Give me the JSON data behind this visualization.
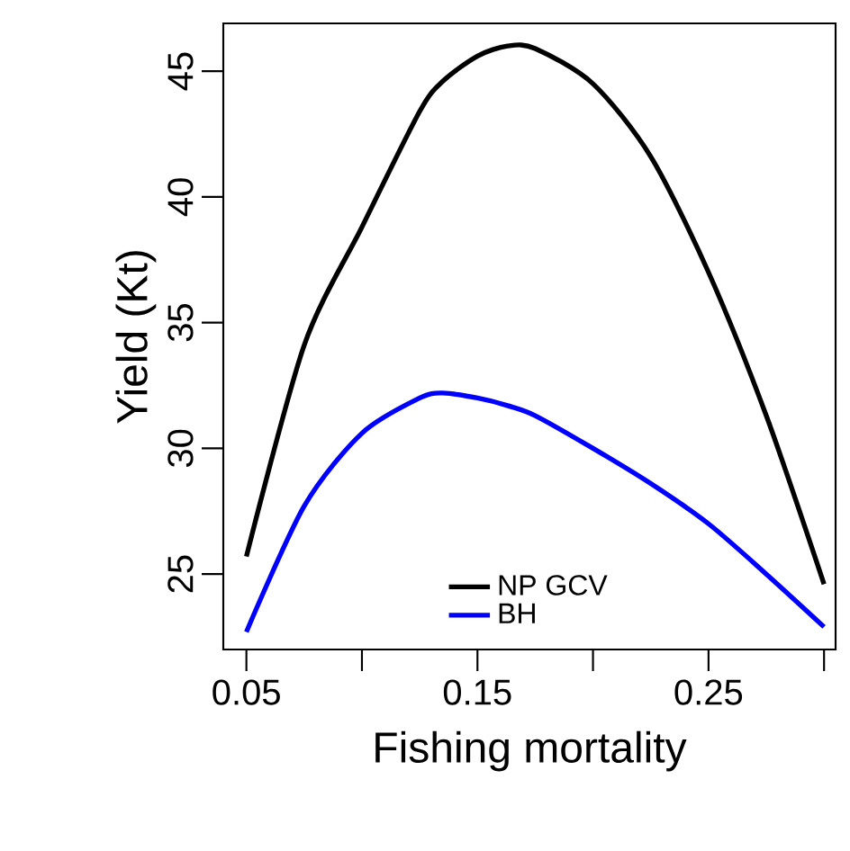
{
  "chart_data": {
    "type": "line",
    "xlabel": "Fishing mortality",
    "ylabel": "Yield (Kt)",
    "x": [
      0.05,
      0.075,
      0.1,
      0.125,
      0.135,
      0.15,
      0.163,
      0.175,
      0.2,
      0.225,
      0.25,
      0.275,
      0.3
    ],
    "series": [
      {
        "name": "NP GCV",
        "color": "#000000",
        "values": [
          25.7,
          34.1,
          38.8,
          43.4,
          44.6,
          45.6,
          46.0,
          45.9,
          44.5,
          41.6,
          37.0,
          31.3,
          24.6
        ]
      },
      {
        "name": "BH",
        "color": "#0000ff",
        "values": [
          22.7,
          27.7,
          30.6,
          32.0,
          32.2,
          32.0,
          31.7,
          31.3,
          30.0,
          28.6,
          27.0,
          25.0,
          22.9
        ]
      }
    ],
    "xlim": [
      0.04,
      0.305
    ],
    "ylim": [
      22,
      46.9
    ],
    "xticks": [
      0.05,
      {
        "value": 0.1,
        "label": null
      },
      0.15,
      {
        "value": 0.2,
        "label": null
      },
      0.25,
      {
        "value": 0.3,
        "label": null
      }
    ],
    "yticks": [
      25,
      30,
      35,
      40,
      45
    ],
    "legend": "bottom",
    "marker": "none",
    "line_style": "solid",
    "grid": false
  }
}
